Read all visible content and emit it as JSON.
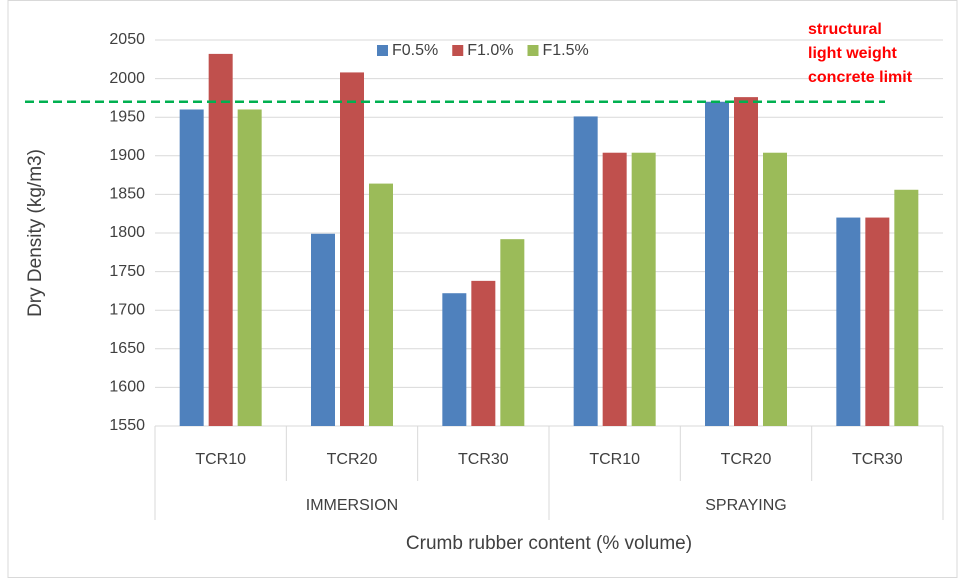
{
  "chart_data": {
    "type": "bar",
    "categories": [
      "TCR10",
      "TCR20",
      "TCR30",
      "TCR10",
      "TCR20",
      "TCR30"
    ],
    "groups": [
      {
        "name": "IMMERSION",
        "count": 3
      },
      {
        "name": "SPRAYING",
        "count": 3
      }
    ],
    "series": [
      {
        "name": "F0.5%",
        "color": "#4f81bd",
        "values": [
          1960,
          1799,
          1722,
          1951,
          1970,
          1820
        ]
      },
      {
        "name": "F1.0%",
        "color": "#c0504d",
        "values": [
          2032,
          2008,
          1738,
          1904,
          1976,
          1820
        ]
      },
      {
        "name": "F1.5%",
        "color": "#9bbb59",
        "values": [
          1960,
          1864,
          1792,
          1904,
          1904,
          1856
        ]
      }
    ],
    "ylim": [
      1550,
      2050
    ],
    "yticks": [
      1550,
      1600,
      1650,
      1700,
      1750,
      1800,
      1850,
      1900,
      1950,
      2000,
      2050
    ],
    "ylabel": "Dry Density (kg/m3)",
    "xlabel": "Crumb rubber content (% volume)",
    "grid": true,
    "legend": "top",
    "reference_line": {
      "value": 1970,
      "color": "#00b050",
      "label": [
        "structural",
        "light weight",
        "concrete  limit"
      ],
      "label_color": "#ff0000"
    }
  }
}
